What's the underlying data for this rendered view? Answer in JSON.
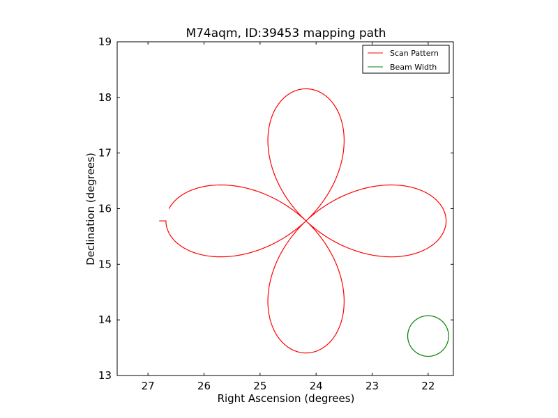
{
  "chart_data": {
    "type": "line",
    "title": "M74aqm, ID:39453 mapping path",
    "xlabel": "Right Ascension (degrees)",
    "ylabel": "Declination (degrees)",
    "xlim": [
      27.55,
      21.55
    ],
    "ylim": [
      13,
      19
    ],
    "x_inverted": true,
    "xticks": [
      27,
      26,
      25,
      24,
      23,
      22
    ],
    "yticks": [
      13,
      14,
      15,
      16,
      17,
      18,
      19
    ],
    "legend": {
      "placement": "top-right",
      "entries": [
        "Scan Pattern",
        "Beam Width"
      ]
    },
    "series": [
      {
        "name": "Scan Pattern",
        "color": "#ff0000",
        "curve": "four-petal rose (rhodonea) centered at RA 24.18, Dec 15.78, petal radius 2.5 deg, starting at RA 26.8, Dec 15.78",
        "center": [
          24.18,
          15.78
        ],
        "petal_radius": 2.5,
        "start_point": [
          26.8,
          15.78
        ]
      },
      {
        "name": "Beam Width",
        "color": "#008000",
        "curve": "circle",
        "center": [
          22.0,
          13.71
        ],
        "radius": 0.365
      }
    ]
  }
}
